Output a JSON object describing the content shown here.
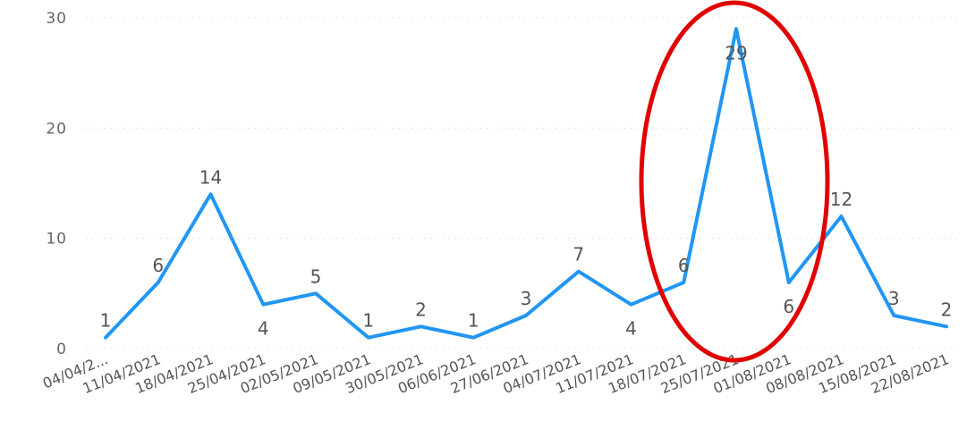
{
  "chart_data": {
    "type": "line",
    "categories": [
      "04/04/2...",
      "11/04/2021",
      "18/04/2021",
      "25/04/2021",
      "02/05/2021",
      "09/05/2021",
      "30/05/2021",
      "06/06/2021",
      "27/06/2021",
      "04/07/2021",
      "11/07/2021",
      "18/07/2021",
      "25/07/2021",
      "01/08/2021",
      "08/08/2021",
      "15/08/2021",
      "22/08/2021"
    ],
    "series": [
      {
        "name": "",
        "values": [
          1,
          6,
          14,
          4,
          5,
          1,
          2,
          1,
          3,
          7,
          4,
          6,
          29,
          6,
          12,
          3,
          2
        ],
        "color": "#2196f3"
      }
    ],
    "data_labels": [
      "1",
      "6",
      "14",
      "4",
      "5",
      "1",
      "2",
      "1",
      "3",
      "7",
      "4",
      "6",
      "29",
      "6",
      "12",
      "3",
      "2"
    ],
    "yticks": [
      0,
      10,
      20,
      30
    ],
    "ylim": [
      0,
      30
    ],
    "title": "",
    "xlabel": "",
    "ylabel": "",
    "grid": "horizontal dotted",
    "legend": "none",
    "highlight": {
      "shape": "ellipse",
      "color": "#e00000",
      "around": "25/07/2021"
    }
  }
}
